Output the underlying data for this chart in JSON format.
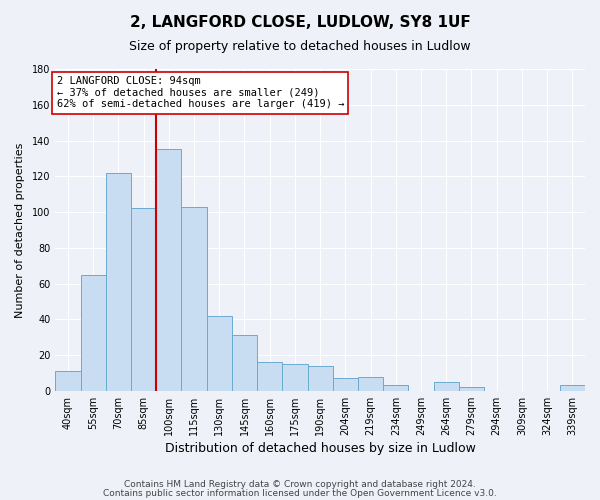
{
  "title": "2, LANGFORD CLOSE, LUDLOW, SY8 1UF",
  "subtitle": "Size of property relative to detached houses in Ludlow",
  "xlabel": "Distribution of detached houses by size in Ludlow",
  "ylabel": "Number of detached properties",
  "bar_labels": [
    "40sqm",
    "55sqm",
    "70sqm",
    "85sqm",
    "100sqm",
    "115sqm",
    "130sqm",
    "145sqm",
    "160sqm",
    "175sqm",
    "190sqm",
    "204sqm",
    "219sqm",
    "234sqm",
    "249sqm",
    "264sqm",
    "279sqm",
    "294sqm",
    "309sqm",
    "324sqm",
    "339sqm"
  ],
  "bar_values": [
    11,
    65,
    122,
    102,
    135,
    103,
    42,
    31,
    16,
    15,
    14,
    7,
    8,
    3,
    0,
    5,
    2,
    0,
    0,
    0,
    3
  ],
  "bar_color": "#c9ddf2",
  "bar_edge_color": "#6aabcf",
  "vline_color": "#cc0000",
  "vline_x_index": 3.5,
  "ylim": [
    0,
    180
  ],
  "yticks": [
    0,
    20,
    40,
    60,
    80,
    100,
    120,
    140,
    160,
    180
  ],
  "annotation_text": "2 LANGFORD CLOSE: 94sqm\n← 37% of detached houses are smaller (249)\n62% of semi-detached houses are larger (419) →",
  "annotation_box_color": "#ffffff",
  "annotation_box_edge": "#cc0000",
  "footer_line1": "Contains HM Land Registry data © Crown copyright and database right 2024.",
  "footer_line2": "Contains public sector information licensed under the Open Government Licence v3.0.",
  "bg_color": "#eef2f8",
  "grid_color": "#d8e0ec",
  "title_fontsize": 11,
  "subtitle_fontsize": 9,
  "xlabel_fontsize": 9,
  "ylabel_fontsize": 8,
  "tick_fontsize": 7,
  "annot_fontsize": 7.5,
  "footer_fontsize": 6.5
}
